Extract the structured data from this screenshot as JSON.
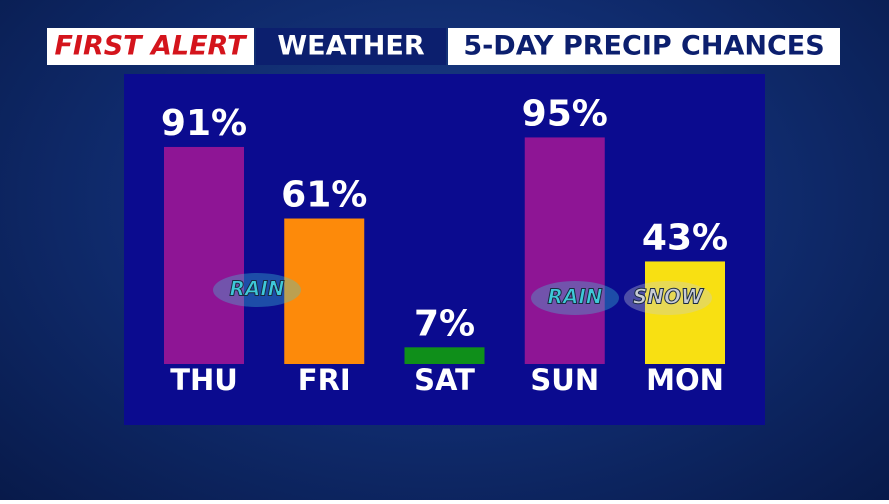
{
  "header": {
    "brand": "FIRST ALERT",
    "section": "WEATHER",
    "title": "5-DAY PRECIP CHANCES"
  },
  "chart_data": {
    "type": "bar",
    "categories": [
      "THU",
      "FRI",
      "SAT",
      "SUN",
      "MON"
    ],
    "values": [
      91,
      61,
      7,
      95,
      43
    ],
    "value_labels": [
      "91%",
      "61%",
      "7%",
      "95%",
      "43%"
    ],
    "colors": [
      "#8e1595",
      "#fd8a0a",
      "#0f8f1a",
      "#8e1595",
      "#f8e012"
    ],
    "annotations": [
      "RAIN",
      "RAIN",
      "SNOW"
    ]
  }
}
